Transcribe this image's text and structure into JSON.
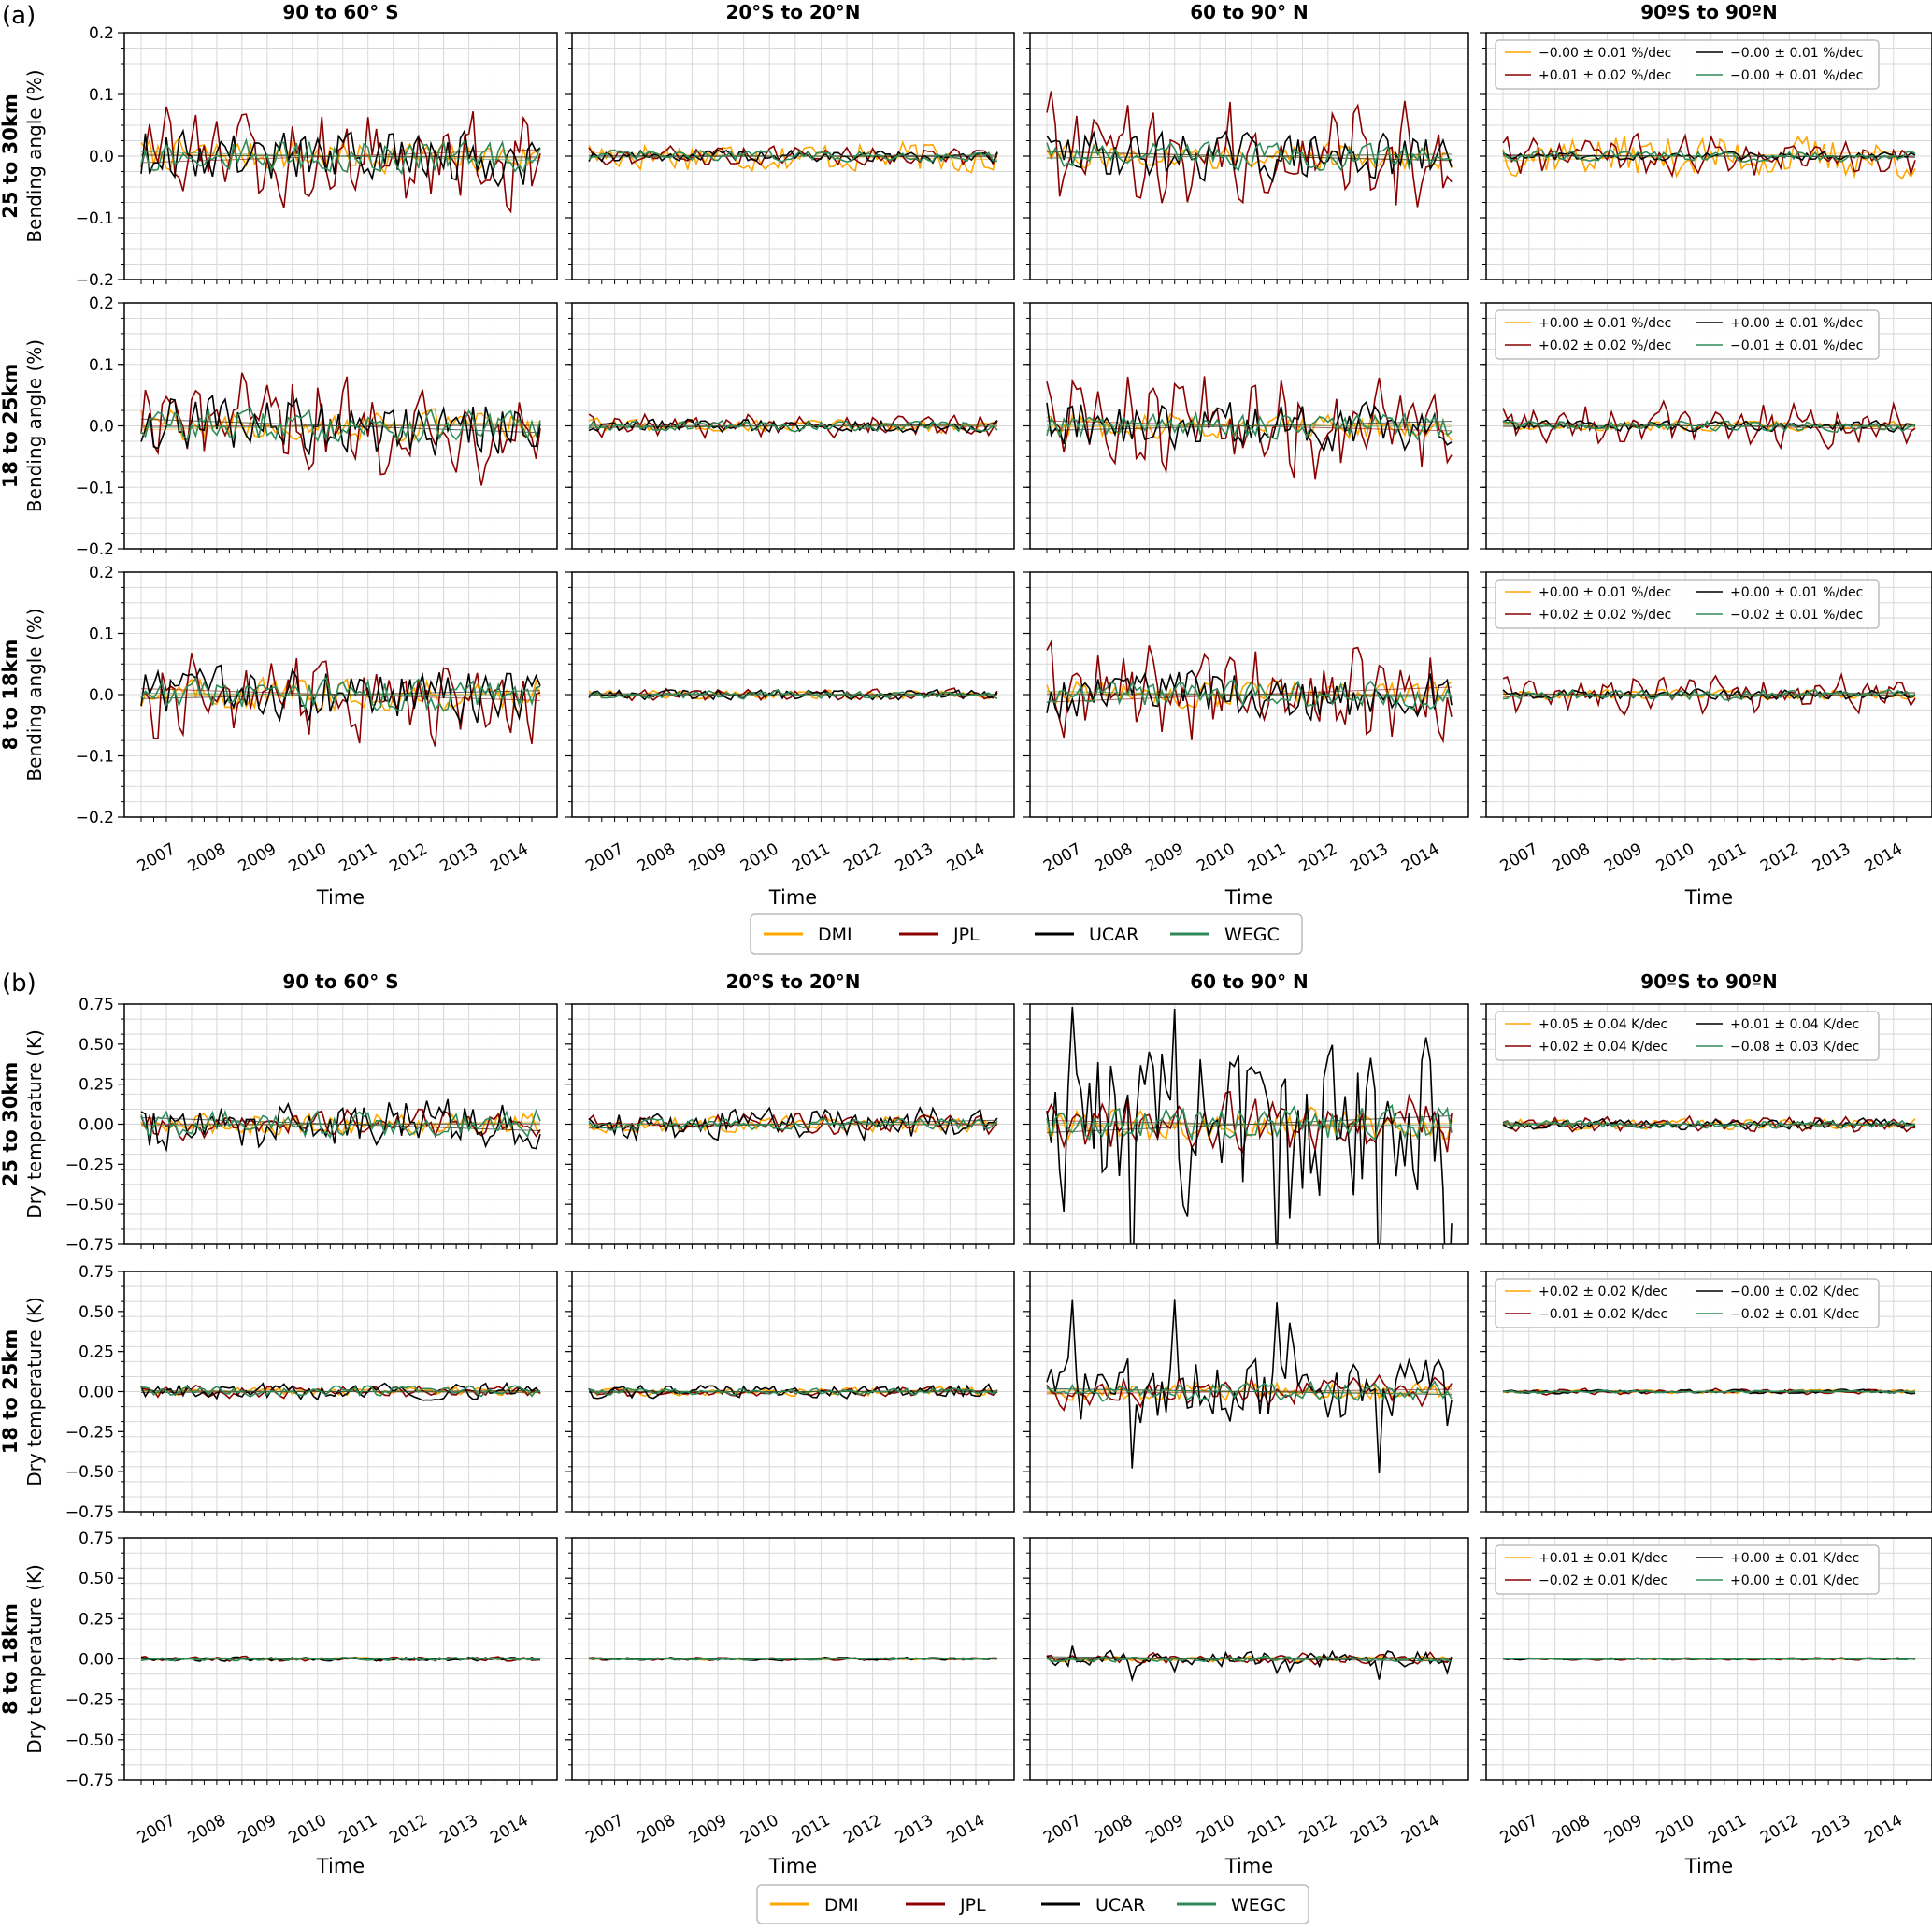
{
  "figure": {
    "colors": {
      "DMI": "#ffa500",
      "JPL": "#8b0000",
      "UCAR": "#000000",
      "WEGC": "#2e8b57"
    },
    "x_label": "Time",
    "x_tick_labels": [
      "2007",
      "2008",
      "2009",
      "2010",
      "2011",
      "2012",
      "2013",
      "2014"
    ],
    "column_titles": [
      "90 to 60° S",
      "20°S to 20°N",
      "60 to 90° N",
      "90ºS to 90ºN"
    ],
    "row_labels": [
      "25 to 30km",
      "18 to 25km",
      "8 to 18km"
    ],
    "legend": [
      "DMI",
      "JPL",
      "UCAR",
      "WEGC"
    ]
  },
  "chart_data": [
    {
      "panel_label": "(a)",
      "type": "line",
      "ylabel": "Bending angle (%)",
      "ylim": [
        -0.2,
        0.2
      ],
      "yticks": [
        "0.2",
        "0.1",
        "0.0",
        "−0.1",
        "−0.2"
      ],
      "x_range": [
        "2006-07",
        "2014-06"
      ],
      "grid": true,
      "legend_placement": "top",
      "amp": [
        {
          "DMI": [
            0.03,
            0.03,
            0.025,
            0.04
          ],
          "JPL": [
            0.06,
            0.012,
            0.07,
            0.025
          ],
          "UCAR": [
            0.05,
            0.012,
            0.045,
            0.008
          ],
          "WEGC": [
            0.03,
            0.01,
            0.025,
            0.01
          ]
        },
        {
          "DMI": [
            0.03,
            0.012,
            0.025,
            0.01
          ],
          "JPL": [
            0.065,
            0.015,
            0.065,
            0.03
          ],
          "UCAR": [
            0.055,
            0.012,
            0.045,
            0.01
          ],
          "WEGC": [
            0.03,
            0.01,
            0.025,
            0.01
          ]
        },
        {
          "DMI": [
            0.03,
            0.008,
            0.025,
            0.01
          ],
          "JPL": [
            0.06,
            0.008,
            0.06,
            0.025
          ],
          "UCAR": [
            0.05,
            0.01,
            0.045,
            0.01
          ],
          "WEGC": [
            0.03,
            0.008,
            0.025,
            0.01
          ]
        }
      ],
      "trend_annotations": [
        [
          "−0.00 ± 0.01 %/dec",
          "+0.01 ± 0.02 %/dec",
          "−0.00 ± 0.01 %/dec",
          "−0.00 ± 0.01 %/dec"
        ],
        [
          "+0.00 ± 0.01 %/dec",
          "+0.02 ± 0.02 %/dec",
          "+0.00 ± 0.01 %/dec",
          "−0.01 ± 0.01 %/dec"
        ],
        [
          "+0.00 ± 0.01 %/dec",
          "+0.02 ± 0.02 %/dec",
          "+0.00 ± 0.01 %/dec",
          "−0.02 ± 0.01 %/dec"
        ]
      ]
    },
    {
      "panel_label": "(b)",
      "type": "line",
      "ylabel": "Dry temperature (K)",
      "ylim": [
        -0.75,
        0.75
      ],
      "yticks": [
        "0.75",
        "0.50",
        "0.25",
        "0.00",
        "−0.25",
        "−0.50",
        "−0.75"
      ],
      "x_range": [
        "2006-07",
        "2014-06"
      ],
      "grid": true,
      "legend_placement": "top",
      "amp": [
        {
          "DMI": [
            0.08,
            0.06,
            0.12,
            0.04
          ],
          "JPL": [
            0.07,
            0.05,
            0.15,
            0.04
          ],
          "UCAR": [
            0.18,
            0.12,
            0.6,
            0.04
          ],
          "WEGC": [
            0.1,
            0.04,
            0.12,
            0.03
          ]
        },
        {
          "DMI": [
            0.03,
            0.03,
            0.07,
            0.015
          ],
          "JPL": [
            0.03,
            0.025,
            0.08,
            0.015
          ],
          "UCAR": [
            0.06,
            0.05,
            0.25,
            0.015
          ],
          "WEGC": [
            0.04,
            0.025,
            0.07,
            0.01
          ]
        },
        {
          "DMI": [
            0.01,
            0.008,
            0.02,
            0.005
          ],
          "JPL": [
            0.012,
            0.008,
            0.03,
            0.006
          ],
          "UCAR": [
            0.015,
            0.012,
            0.06,
            0.006
          ],
          "WEGC": [
            0.012,
            0.008,
            0.02,
            0.005
          ]
        }
      ],
      "trend_annotations": [
        [
          "+0.05 ± 0.04 K/dec",
          "+0.02 ± 0.04 K/dec",
          "+0.01 ± 0.04 K/dec",
          "−0.08 ± 0.03 K/dec"
        ],
        [
          "+0.02 ± 0.02 K/dec",
          "−0.01 ± 0.02 K/dec",
          "−0.00 ± 0.02 K/dec",
          "−0.02 ± 0.01 K/dec"
        ],
        [
          "+0.01 ± 0.01 K/dec",
          "−0.02 ± 0.01 K/dec",
          "+0.00 ± 0.01 K/dec",
          "+0.00 ± 0.01 K/dec"
        ]
      ]
    }
  ]
}
